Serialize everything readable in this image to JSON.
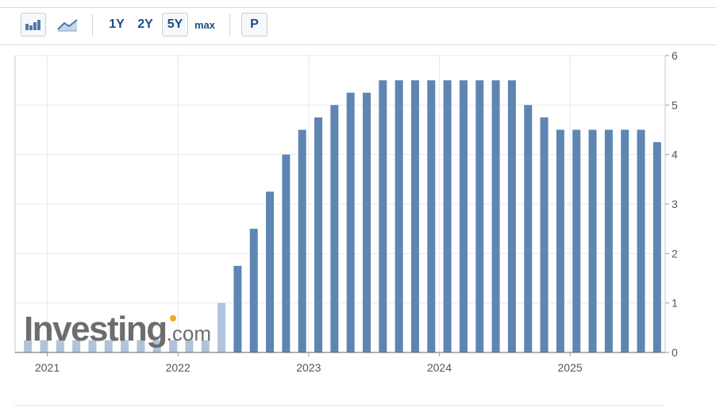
{
  "toolbar": {
    "bar_chart_icon": "bar-chart-icon",
    "area_chart_icon": "area-chart-icon",
    "ranges": [
      "1Y",
      "2Y",
      "5Y",
      "max"
    ],
    "selected_range": "5Y",
    "p_label": "P"
  },
  "watermark": {
    "main": "Investing",
    "suffix": ".com"
  },
  "colors": {
    "bar": "#5d86b3",
    "bar_faded": "#b1c3db",
    "grid": "#e8e8e8",
    "border": "#c8c8c8",
    "accent": "#1a4e8c",
    "logo_dot": "#f2a81d"
  },
  "chart_data": {
    "type": "bar",
    "title": "",
    "xlabel": "",
    "ylabel": "",
    "ylim": [
      0,
      6
    ],
    "y_ticks": [
      0,
      1,
      2,
      3,
      4,
      5,
      6
    ],
    "x_tick_labels": [
      "2021",
      "2022",
      "2023",
      "2024",
      "2025"
    ],
    "grid": true,
    "y_axis_position": "right",
    "values": [
      0.25,
      0.25,
      0.25,
      0.25,
      0.25,
      0.25,
      0.25,
      0.25,
      0.25,
      0.25,
      0.25,
      0.25,
      1.0,
      1.75,
      2.5,
      3.25,
      4.0,
      4.5,
      4.75,
      5.0,
      5.25,
      5.25,
      5.5,
      5.5,
      5.5,
      5.5,
      5.5,
      5.5,
      5.5,
      5.5,
      5.5,
      5.0,
      4.75,
      4.5,
      4.5,
      4.5,
      4.5,
      4.5,
      4.5,
      4.25
    ],
    "faded_count": 13
  }
}
